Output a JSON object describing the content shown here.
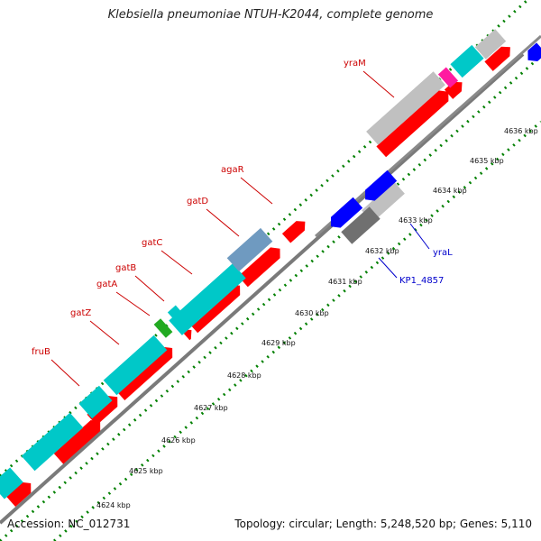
{
  "title": "Klebsiella pneumoniae NTUH-K2044, complete genome",
  "footer": {
    "accession": "Accession: NC_012731",
    "summary": "Topology: circular; Length: 5,248,520 bp; Genes: 5,110"
  },
  "colors": {
    "forward_cds": "#ff0000",
    "reverse_cds": "#0000ff",
    "rna_or_feature": "#00c8c8",
    "pseudo": "#c0c0c0",
    "dark_feature": "#707070",
    "highlight_magenta": "#ff1aa0",
    "highlight_green": "#22aa22",
    "highlight_steelblue": "#6f9ac0",
    "tick_green": "#008000",
    "label_forward": "#cc0000",
    "label_reverse": "#0000cc"
  },
  "scale": {
    "unit": "kbp",
    "ticks": [
      "4624 kbp",
      "4625 kbp",
      "4626 kbp",
      "4627 kbp",
      "4628 kbp",
      "4629 kbp",
      "4630 kbp",
      "4631 kbp",
      "4632 kbp",
      "4633 kbp",
      "4634 kbp",
      "4635 kbp",
      "4636 kbp"
    ]
  },
  "gene_labels": {
    "forward": [
      "fruB",
      "gatZ",
      "gatA",
      "gatB",
      "gatC",
      "gatD",
      "agaR",
      "yraM"
    ],
    "reverse": [
      "KP1_4857",
      "yraL"
    ]
  }
}
